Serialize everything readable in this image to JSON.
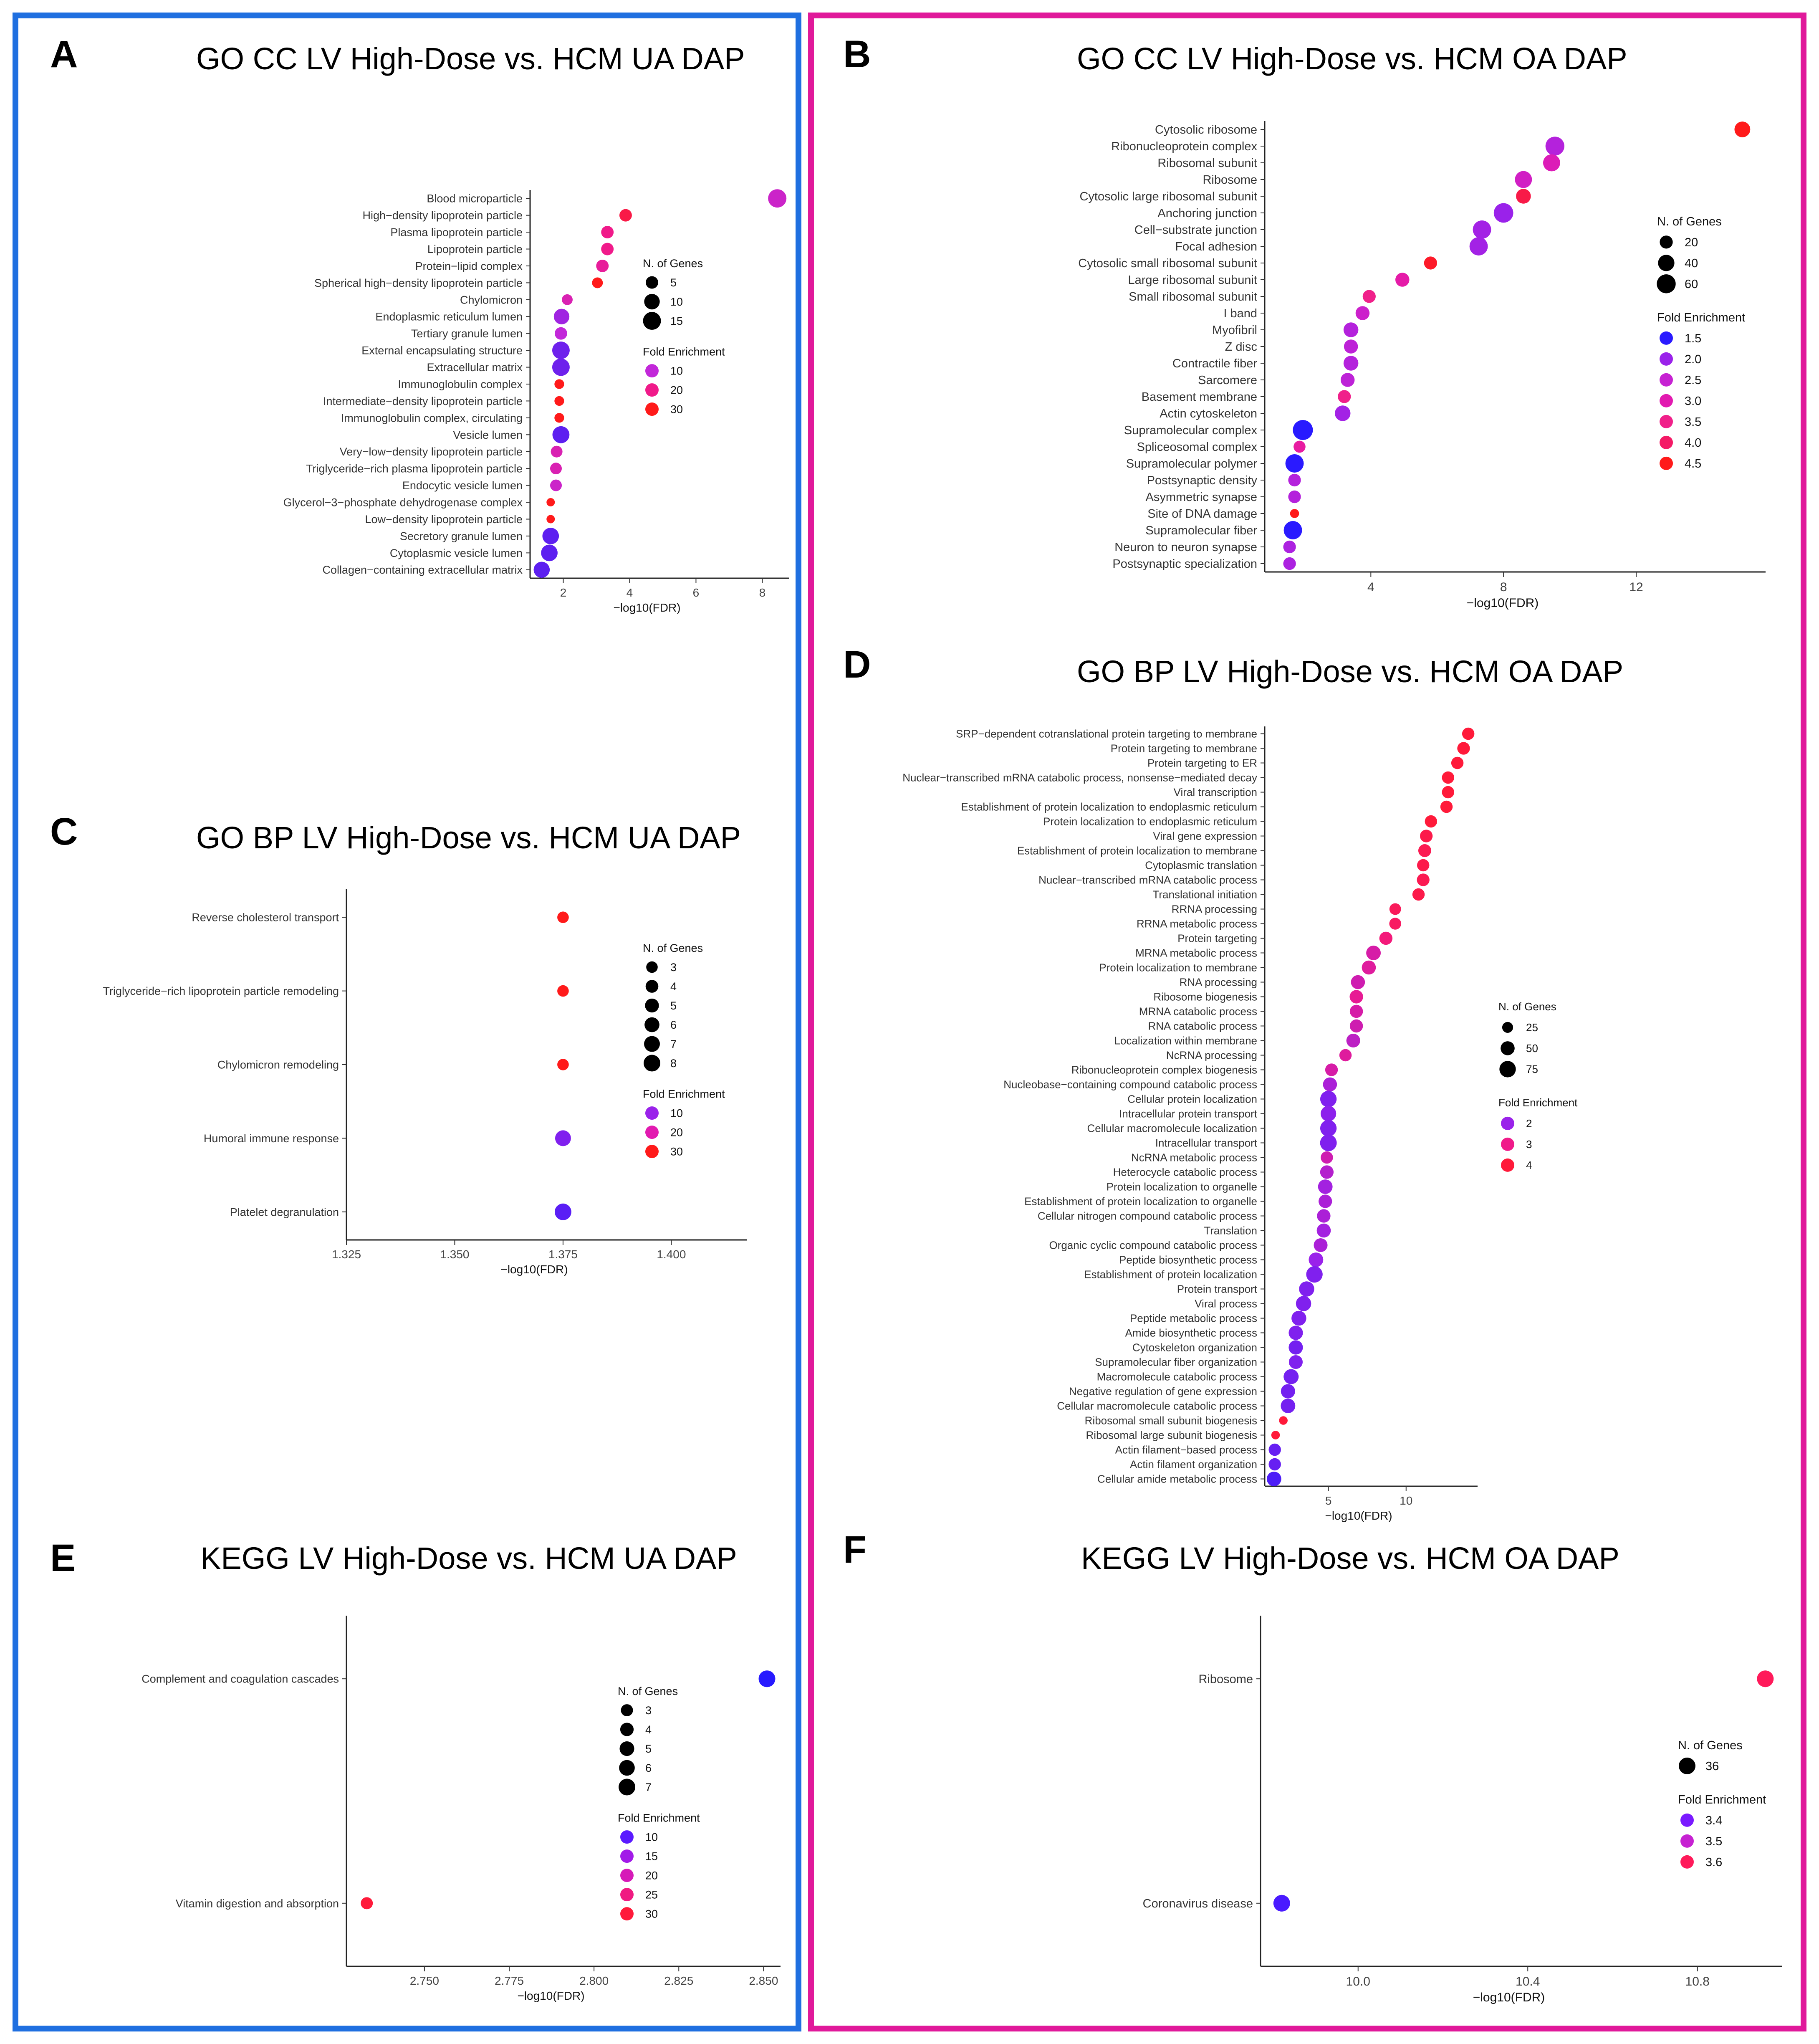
{
  "chart_data": [
    {
      "id": "A",
      "letter": "A",
      "type": "scatter",
      "title": "GO CC LV High-Dose vs. HCM UA DAP",
      "xlabel": "−log10(FDR)",
      "ylabel": "",
      "xlim": [
        1.0,
        8.8
      ],
      "xticks": [
        "2",
        "4",
        "6",
        "8"
      ],
      "xtick_values": [
        2,
        4,
        6,
        8
      ],
      "categories": [
        "Blood microparticle",
        "High−density lipoprotein particle",
        "Plasma lipoprotein particle",
        "Lipoprotein particle",
        "Protein−lipid complex",
        "Spherical high−density lipoprotein particle",
        "Chylomicron",
        "Endoplasmic reticulum lumen",
        "Tertiary granule lumen",
        "External encapsulating structure",
        "Extracellular matrix",
        "Immunoglobulin complex",
        "Intermediate−density lipoprotein particle",
        "Immunoglobulin complex, circulating",
        "Vesicle lumen",
        "Very−low−density lipoprotein particle",
        "Triglyceride−rich plasma lipoprotein particle",
        "Endocytic vesicle lumen",
        "Glycerol−3−phosphate dehydrogenase complex",
        "Low−density lipoprotein particle",
        "Secretory granule lumen",
        "Cytoplasmic vesicle lumen",
        "Collagen−containing extracellular matrix"
      ],
      "x": [
        8.45,
        3.88,
        3.33,
        3.33,
        3.18,
        3.03,
        2.12,
        1.95,
        1.93,
        1.93,
        1.93,
        1.88,
        1.88,
        1.88,
        1.93,
        1.8,
        1.78,
        1.78,
        1.62,
        1.62,
        1.62,
        1.58,
        1.35
      ],
      "genes": [
        16,
        5,
        5,
        5,
        5,
        3,
        3,
        10,
        5,
        14,
        14,
        2,
        2,
        2,
        13,
        4,
        4,
        4,
        1,
        1,
        12,
        12,
        11
      ],
      "fold_enrichment": [
        12,
        26,
        20,
        20,
        18,
        35,
        15,
        8,
        10,
        5,
        5,
        30,
        30,
        30,
        4,
        15,
        15,
        12,
        40,
        40,
        4,
        4,
        4
      ],
      "legend": {
        "size_title": "N. of Genes",
        "size_labels": [
          "5",
          "10",
          "15"
        ],
        "size_values": [
          5,
          10,
          15
        ],
        "color_title": "Fold Enrichment",
        "color_labels": [
          "10",
          "20",
          "30"
        ],
        "color_values": [
          10,
          20,
          30
        ],
        "color_hex": [
          "#c227d9",
          "#f01a8a",
          "#ff1a1a"
        ]
      }
    },
    {
      "id": "B",
      "letter": "B",
      "type": "scatter",
      "title": "GO CC LV High-Dose vs. HCM OA DAP",
      "xlabel": "−log10(FDR)",
      "ylabel": "",
      "xlim": [
        0.8,
        15.9
      ],
      "xticks": [
        "4",
        "8",
        "12"
      ],
      "xtick_values": [
        4,
        8,
        12
      ],
      "categories": [
        "Cytosolic ribosome",
        "Ribonucleoprotein complex",
        "Ribosomal subunit",
        "Ribosome",
        "Cytosolic large ribosomal subunit",
        "Anchoring junction",
        "Cell−substrate junction",
        "Focal adhesion",
        "Cytosolic small ribosomal subunit",
        "Large ribosomal subunit",
        "Small ribosomal subunit",
        "I band",
        "Myofibril",
        "Z disc",
        "Contractile fiber",
        "Sarcomere",
        "Basement membrane",
        "Actin cytoskeleton",
        "Supramolecular complex",
        "Spliceosomal complex",
        "Supramolecular polymer",
        "Postsynaptic density",
        "Asymmetric synapse",
        "Site of DNA damage",
        "Supramolecular fiber",
        "Neuron to neuron synapse",
        "Postsynaptic specialization"
      ],
      "x": [
        15.2,
        9.55,
        9.45,
        8.6,
        8.6,
        8.0,
        7.35,
        7.25,
        5.8,
        4.95,
        3.95,
        3.75,
        3.4,
        3.4,
        3.4,
        3.3,
        3.2,
        3.15,
        1.95,
        1.85,
        1.7,
        1.7,
        1.7,
        1.7,
        1.65,
        1.55,
        1.55
      ],
      "genes": [
        36,
        60,
        45,
        45,
        30,
        65,
        55,
        55,
        20,
        25,
        20,
        25,
        30,
        25,
        30,
        25,
        20,
        35,
        70,
        15,
        55,
        18,
        18,
        5,
        55,
        18,
        18
      ],
      "fold_enrichment": [
        4.6,
        2.3,
        2.9,
        2.7,
        4.2,
        2.0,
        2.1,
        2.1,
        4.4,
        3.1,
        3.5,
        2.6,
        2.3,
        2.4,
        2.3,
        2.4,
        3.5,
        2.1,
        1.45,
        3.2,
        1.5,
        2.3,
        2.3,
        4.5,
        1.5,
        2.2,
        2.2
      ],
      "legend": {
        "size_title": "N. of Genes",
        "size_labels": [
          "20",
          "40",
          "60"
        ],
        "size_values": [
          20,
          40,
          60
        ],
        "color_title": "Fold Enrichment",
        "color_labels": [
          "1.5",
          "2.0",
          "2.5",
          "3.0",
          "3.5",
          "4.0",
          "4.5"
        ],
        "color_values": [
          1.5,
          2.0,
          2.5,
          3.0,
          3.5,
          4.0,
          4.5
        ],
        "color_hex": [
          "#2a1aff",
          "#9a22ea",
          "#c622d2",
          "#e21ab0",
          "#f0208a",
          "#f41a66",
          "#ff1a1a"
        ]
      }
    },
    {
      "id": "C",
      "letter": "C",
      "type": "scatter",
      "title": "GO BP LV High-Dose vs. HCM UA DAP",
      "xlabel": "−log10(FDR)",
      "ylabel": "",
      "xlim": [
        1.325,
        1.4175
      ],
      "xticks": [
        "1.325",
        "1.350",
        "1.375",
        "1.400"
      ],
      "xtick_values": [
        1.325,
        1.35,
        1.375,
        1.4
      ],
      "categories": [
        "Reverse cholesterol transport",
        "Triglyceride−rich lipoprotein particle remodeling",
        "Chylomicron remodeling",
        "Humoral immune response",
        "Platelet degranulation"
      ],
      "x": [
        1.375,
        1.375,
        1.375,
        1.375,
        1.375
      ],
      "genes": [
        3,
        3,
        3,
        7,
        8
      ],
      "fold_enrichment": [
        35,
        35,
        35,
        8,
        5
      ],
      "legend": {
        "size_title": "N. of Genes",
        "size_labels": [
          "3",
          "4",
          "5",
          "6",
          "7",
          "8"
        ],
        "size_values": [
          3,
          4,
          5,
          6,
          7,
          8
        ],
        "color_title": "Fold Enrichment",
        "color_labels": [
          "10",
          "20",
          "30"
        ],
        "color_values": [
          10,
          20,
          30
        ],
        "color_hex": [
          "#9a22ea",
          "#e21ab0",
          "#ff1a1a"
        ]
      }
    },
    {
      "id": "D",
      "letter": "D",
      "type": "scatter",
      "title": "GO BP LV High-Dose vs. HCM OA DAP",
      "xlabel": "−log10(FDR)",
      "ylabel": "",
      "xlim": [
        0.9,
        14.6
      ],
      "xticks": [
        "5",
        "10"
      ],
      "xtick_values": [
        5,
        10
      ],
      "categories": [
        "SRP−dependent cotranslational protein targeting to membrane",
        "Protein targeting to membrane",
        "Protein targeting to ER",
        "Nuclear−transcribed mRNA catabolic process, nonsense−mediated decay",
        "Viral transcription",
        "Establishment of protein localization to endoplasmic reticulum",
        "Protein localization to endoplasmic reticulum",
        "Viral gene expression",
        "Establishment of protein localization to membrane",
        "Cytoplasmic translation",
        "Nuclear−transcribed mRNA catabolic process",
        "Translational initiation",
        "RRNA processing",
        "RRNA metabolic process",
        "Protein targeting",
        "MRNA metabolic process",
        "Protein localization to membrane",
        "RNA processing",
        "Ribosome biogenesis",
        "MRNA catabolic process",
        "RNA catabolic process",
        "Localization within membrane",
        "NcRNA processing",
        "Ribonucleoprotein complex biogenesis",
        "Nucleobase−containing compound catabolic process",
        "Cellular protein localization",
        "Intracellular protein transport",
        "Cellular macromolecule localization",
        "Intracellular transport",
        "NcRNA metabolic process",
        "Heterocycle catabolic process",
        "Protein localization to organelle",
        "Establishment of protein localization to organelle",
        "Cellular nitrogen compound catabolic process",
        "Translation",
        "Organic cyclic compound catabolic process",
        "Peptide biosynthetic process",
        "Establishment of protein localization",
        "Protein transport",
        "Viral process",
        "Peptide metabolic process",
        "Amide biosynthetic process",
        "Cytoskeleton organization",
        "Supramolecular fiber organization",
        "Macromolecule catabolic process",
        "Negative regulation of gene expression",
        "Cellular macromolecule catabolic process",
        "Ribosomal small subunit biogenesis",
        "Ribosomal large subunit biogenesis",
        "Actin filament−based process",
        "Actin filament organization",
        "Cellular amide metabolic process"
      ],
      "x": [
        14.0,
        13.7,
        13.3,
        12.7,
        12.7,
        12.6,
        11.6,
        11.3,
        11.2,
        11.1,
        11.1,
        10.8,
        9.3,
        9.3,
        8.7,
        7.9,
        7.6,
        6.9,
        6.8,
        6.8,
        6.8,
        6.6,
        6.1,
        5.2,
        5.1,
        5.0,
        5.0,
        5.0,
        5.0,
        4.9,
        4.9,
        4.8,
        4.8,
        4.7,
        4.7,
        4.5,
        4.2,
        4.1,
        3.6,
        3.4,
        3.1,
        2.9,
        2.9,
        2.9,
        2.6,
        2.4,
        2.4,
        2.1,
        1.6,
        1.55,
        1.55,
        1.5
      ],
      "genes": [
        35,
        38,
        35,
        35,
        35,
        35,
        35,
        38,
        40,
        35,
        38,
        35,
        30,
        32,
        42,
        55,
        50,
        50,
        45,
        42,
        42,
        48,
        35,
        38,
        50,
        75,
        65,
        75,
        78,
        35,
        45,
        55,
        45,
        45,
        50,
        48,
        55,
        75,
        62,
        62,
        58,
        52,
        52,
        48,
        60,
        52,
        55,
        12,
        12,
        35,
        35,
        55
      ],
      "fold_enrichment": [
        4.4,
        4.3,
        4.3,
        4.1,
        4.1,
        4.1,
        4.1,
        3.8,
        3.7,
        3.8,
        3.7,
        3.8,
        3.6,
        3.5,
        3.2,
        2.7,
        2.8,
        2.6,
        2.9,
        2.7,
        2.6,
        2.4,
        2.8,
        2.7,
        2.2,
        1.8,
        1.9,
        1.8,
        1.8,
        2.6,
        2.3,
        2.1,
        2.2,
        2.2,
        2.1,
        2.2,
        2.0,
        1.8,
        1.8,
        1.8,
        1.8,
        1.8,
        1.7,
        1.8,
        1.7,
        1.7,
        1.7,
        4.6,
        4.6,
        1.6,
        1.6,
        1.4
      ],
      "legend": {
        "size_title": "N. of Genes",
        "size_labels": [
          "25",
          "50",
          "75"
        ],
        "size_values": [
          25,
          50,
          75
        ],
        "color_title": "Fold Enrichment",
        "color_labels": [
          "2",
          "3",
          "4"
        ],
        "color_values": [
          2,
          3,
          4
        ],
        "color_hex": [
          "#9a22ea",
          "#f01a8a",
          "#ff1a3a"
        ]
      }
    },
    {
      "id": "E",
      "letter": "E",
      "type": "scatter",
      "title": "KEGG LV High-Dose vs. HCM UA DAP",
      "xlabel": "−log10(FDR)",
      "ylabel": "",
      "xlim": [
        2.727,
        2.855
      ],
      "xticks": [
        "2.750",
        "2.775",
        "2.800",
        "2.825",
        "2.850"
      ],
      "xtick_values": [
        2.75,
        2.775,
        2.8,
        2.825,
        2.85
      ],
      "categories": [
        "Complement and coagulation cascades",
        "Vitamin digestion and absorption"
      ],
      "x": [
        2.851,
        2.733
      ],
      "genes": [
        7,
        3
      ],
      "fold_enrichment": [
        6,
        32
      ],
      "legend": {
        "size_title": "N. of Genes",
        "size_labels": [
          "3",
          "4",
          "5",
          "6",
          "7"
        ],
        "size_values": [
          3,
          4,
          5,
          6,
          7
        ],
        "color_title": "Fold Enrichment",
        "color_labels": [
          "10",
          "15",
          "20",
          "25",
          "30"
        ],
        "color_values": [
          10,
          15,
          20,
          25,
          30
        ],
        "color_hex": [
          "#5a1aff",
          "#a21ae8",
          "#d61ab8",
          "#f01a82",
          "#ff1a3a"
        ]
      }
    },
    {
      "id": "F",
      "letter": "F",
      "type": "scatter",
      "title": "KEGG LV High-Dose vs. HCM OA DAP",
      "xlabel": "−log10(FDR)",
      "ylabel": "",
      "xlim": [
        9.77,
        11.0
      ],
      "xticks": [
        "10.0",
        "10.4",
        "10.8"
      ],
      "xtick_values": [
        10.0,
        10.4,
        10.8
      ],
      "categories": [
        "Ribosome",
        "Coronavirus disease"
      ],
      "x": [
        10.96,
        9.82
      ],
      "genes": [
        36,
        36
      ],
      "fold_enrichment": [
        3.6,
        3.35
      ],
      "legend": {
        "size_title": "N. of Genes",
        "size_labels": [
          "36"
        ],
        "size_values": [
          36
        ],
        "color_title": "Fold Enrichment",
        "color_labels": [
          "3.4",
          "3.5",
          "3.6"
        ],
        "color_values": [
          3.4,
          3.5,
          3.6
        ],
        "color_hex": [
          "#7a1aff",
          "#c622d2",
          "#ff1a5a"
        ]
      }
    }
  ]
}
